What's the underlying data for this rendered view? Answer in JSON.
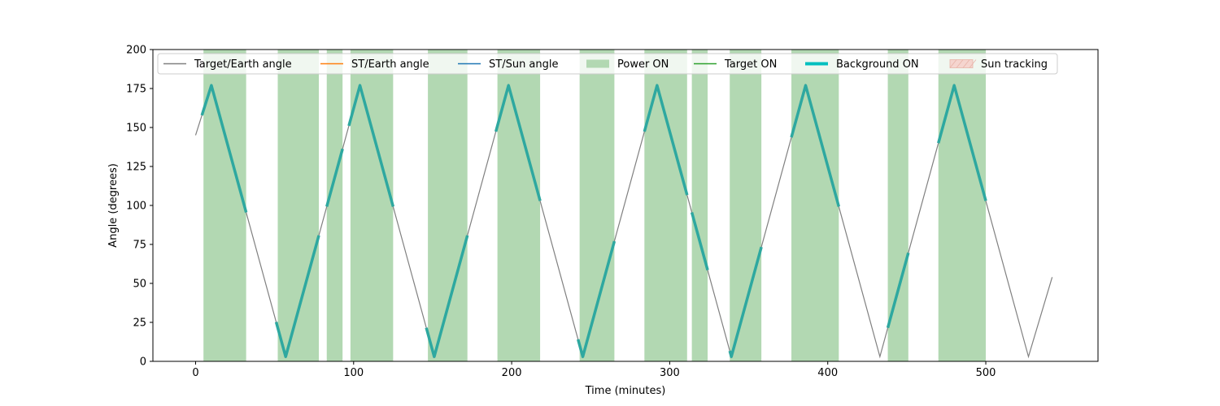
{
  "chart_data": {
    "type": "line",
    "title": "",
    "xlabel": "Time (minutes)",
    "ylabel": "Angle (degrees)",
    "xlim": [
      -27,
      571
    ],
    "ylim": [
      0,
      200
    ],
    "xticks": [
      0,
      100,
      200,
      300,
      400,
      500
    ],
    "yticks": [
      0,
      25,
      50,
      75,
      100,
      125,
      150,
      175,
      200
    ],
    "grid": false,
    "legend_placement": "top",
    "colors": {
      "target_earth": "#808080",
      "st_earth": "#ff7f0e",
      "st_sun": "#1f77b4",
      "power_on": "#b2d8b2",
      "target_on": "#2ca02c",
      "background_on": "#2ea8a0",
      "sun_tracking": "#f5d5cf"
    },
    "legend": [
      {
        "label": "Target/Earth angle",
        "kind": "line",
        "color": "#808080"
      },
      {
        "label": "ST/Earth angle",
        "kind": "line",
        "color": "#ff7f0e"
      },
      {
        "label": "ST/Sun angle",
        "kind": "line",
        "color": "#1f77b4"
      },
      {
        "label": "Power ON",
        "kind": "patch",
        "color": "#b2d8b2"
      },
      {
        "label": "Target ON",
        "kind": "line",
        "color": "#2ca02c"
      },
      {
        "label": "Background ON",
        "kind": "thickline",
        "color": "#00bfbf"
      },
      {
        "label": "Sun tracking",
        "kind": "hatch",
        "color": "#f5d5cf"
      }
    ],
    "series": [
      {
        "name": "Target/Earth angle",
        "points": [
          [
            0,
            145
          ],
          [
            10,
            177
          ],
          [
            57,
            3
          ],
          [
            104,
            177
          ],
          [
            151,
            3
          ],
          [
            198,
            177
          ],
          [
            245,
            3
          ],
          [
            292,
            177
          ],
          [
            339,
            3
          ],
          [
            386,
            177
          ],
          [
            433,
            3
          ],
          [
            480,
            177
          ],
          [
            527,
            3
          ],
          [
            542,
            54
          ]
        ]
      }
    ],
    "power_on_intervals": [
      [
        5,
        32
      ],
      [
        52,
        78
      ],
      [
        83,
        93
      ],
      [
        98,
        125
      ],
      [
        147,
        172
      ],
      [
        191,
        218
      ],
      [
        243,
        265
      ],
      [
        284,
        311
      ],
      [
        314,
        324
      ],
      [
        338,
        358
      ],
      [
        377,
        407
      ],
      [
        438,
        451
      ],
      [
        470,
        500
      ]
    ],
    "background_on_intervals": [
      [
        4,
        32
      ],
      [
        51,
        78
      ],
      [
        83,
        93
      ],
      [
        97,
        125
      ],
      [
        146,
        172
      ],
      [
        190,
        218
      ],
      [
        242,
        265
      ],
      [
        284,
        311
      ],
      [
        314,
        324
      ],
      [
        338,
        358
      ],
      [
        377,
        407
      ],
      [
        438,
        451
      ],
      [
        470,
        500
      ]
    ]
  }
}
